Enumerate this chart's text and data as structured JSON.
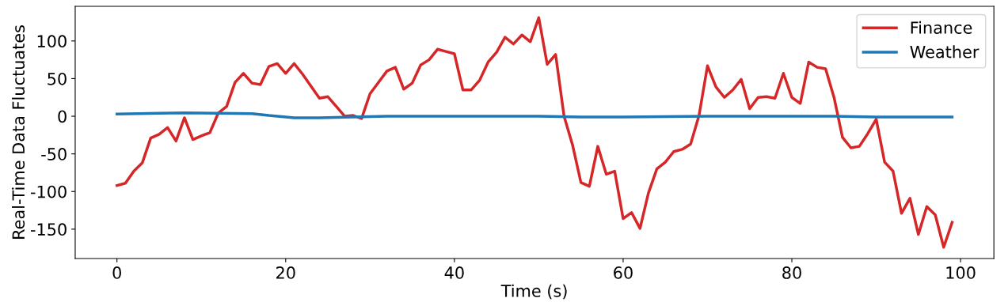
{
  "chart_data": {
    "type": "line",
    "xlabel": "Time (s)",
    "ylabel": "Real-Time Data Fluctuates",
    "xlim": [
      -4.95,
      103.95
    ],
    "ylim": [
      -189,
      146
    ],
    "xticks": [
      0,
      20,
      40,
      60,
      80,
      100
    ],
    "yticks": [
      -150,
      -100,
      -50,
      0,
      50,
      100
    ],
    "series": [
      {
        "name": "Finance",
        "color": "#d62728",
        "x": [
          0,
          1,
          2,
          3,
          4,
          5,
          6,
          7,
          8,
          9,
          10,
          11,
          12,
          13,
          14,
          15,
          16,
          17,
          18,
          19,
          20,
          21,
          22,
          23,
          24,
          25,
          26,
          27,
          28,
          29,
          30,
          31,
          32,
          33,
          34,
          35,
          36,
          37,
          38,
          39,
          40,
          41,
          42,
          43,
          44,
          45,
          46,
          47,
          48,
          49,
          50,
          51,
          52,
          53,
          54,
          55,
          56,
          57,
          58,
          59,
          60,
          61,
          62,
          63,
          64,
          65,
          66,
          67,
          68,
          69,
          70,
          71,
          72,
          73,
          74,
          75,
          76,
          77,
          78,
          79,
          80,
          81,
          82,
          83,
          84,
          85,
          86,
          87,
          88,
          89,
          90,
          91,
          92,
          93,
          94,
          95,
          96,
          97,
          98,
          99
        ],
        "values": [
          -92,
          -89,
          -73,
          -62,
          -29,
          -24,
          -15,
          -33,
          -2,
          -31,
          -26,
          -22,
          4,
          13,
          45,
          57,
          44,
          42,
          66,
          70,
          57,
          70,
          56,
          40,
          24,
          26,
          13,
          0,
          1,
          -3,
          30,
          45,
          60,
          65,
          36,
          44,
          68,
          75,
          89,
          86,
          83,
          35,
          35,
          48,
          72,
          85,
          105,
          96,
          108,
          99,
          131,
          69,
          82,
          0,
          -38,
          -88,
          -93,
          -40,
          -77,
          -73,
          -136,
          -128,
          -149,
          -102,
          -70,
          -61,
          -47,
          -44,
          -37,
          1,
          67,
          39,
          25,
          35,
          49,
          10,
          25,
          26,
          24,
          57,
          25,
          17,
          72,
          65,
          63,
          25,
          -28,
          -42,
          -40,
          -23,
          -4,
          -61,
          -73,
          -129,
          -109,
          -157,
          -120,
          -131,
          -174,
          -141
        ]
      },
      {
        "name": "Weather",
        "color": "#1f77b4",
        "x": [
          0,
          5,
          8,
          12,
          16,
          18,
          21,
          24,
          28,
          32,
          40,
          50,
          55,
          60,
          70,
          80,
          85,
          90,
          95,
          99
        ],
        "values": [
          3,
          4,
          4.5,
          4,
          3.5,
          1,
          -2,
          -2,
          -1,
          0,
          0,
          0,
          -1,
          -1,
          0,
          0,
          0,
          -1,
          -1,
          -1
        ]
      }
    ],
    "legend": "top right",
    "grid": false
  }
}
